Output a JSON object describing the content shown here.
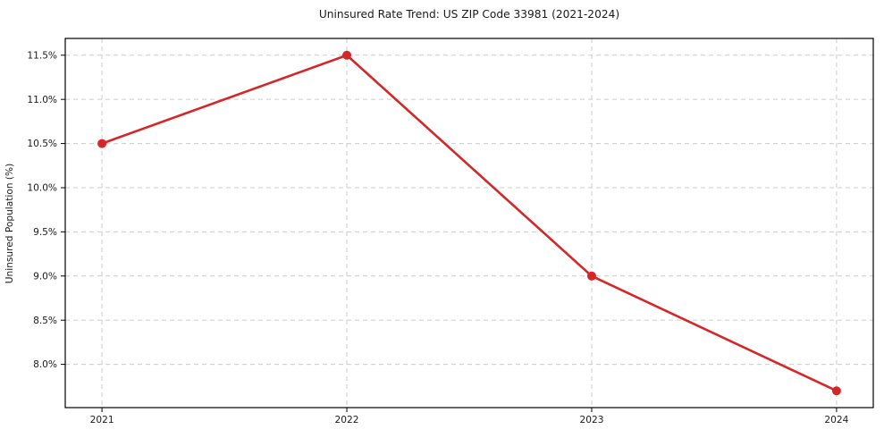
{
  "chart_data": {
    "type": "line",
    "title": "Uninsured Rate Trend: US ZIP Code 33981 (2021-2024)",
    "xlabel": "",
    "ylabel": "Uninsured Population (%)",
    "x": [
      2021,
      2022,
      2023,
      2024
    ],
    "series": [
      {
        "name": "Uninsured rate",
        "values": [
          10.5,
          11.5,
          9.0,
          7.7
        ]
      }
    ],
    "xticks": [
      2021,
      2022,
      2023,
      2024
    ],
    "xtick_labels": [
      "2021",
      "2022",
      "2023",
      "2024"
    ],
    "yticks": [
      8.0,
      8.5,
      9.0,
      9.5,
      10.0,
      10.5,
      11.0,
      11.5
    ],
    "ytick_labels": [
      "8.0%",
      "8.5%",
      "9.0%",
      "9.5%",
      "10.0%",
      "10.5%",
      "11.0%",
      "11.5%"
    ],
    "xlim": [
      2020.85,
      2024.15
    ],
    "ylim": [
      7.51,
      11.69
    ],
    "grid": true,
    "grid_style": "dashed",
    "legend": "none",
    "line_color": "#d62728",
    "grid_color": "#cccccc",
    "axis_color": "#000000",
    "text_color": "#1a1a1a",
    "marker": "circle",
    "marker_radius": 5,
    "line_width": 2.6
  }
}
